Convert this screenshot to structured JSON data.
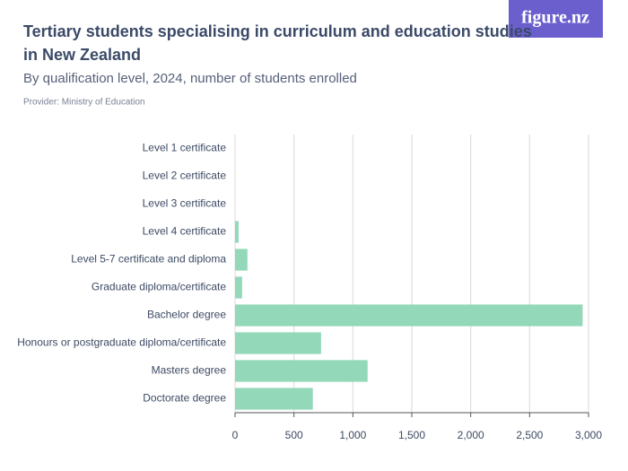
{
  "logo": "figure.nz",
  "chart_data": {
    "type": "hbar",
    "title": [
      "Tertiary students specialising in curriculum and education studies",
      "in New Zealand"
    ],
    "subtitle": "By qualification level, 2024, number of students enrolled",
    "provider": "Provider: Ministry of Education",
    "categories": [
      "Level 1 certificate",
      "Level 2 certificate",
      "Level 3 certificate",
      "Level 4 certificate",
      "Level 5-7 certificate and diploma",
      "Graduate diploma/certificate",
      "Bachelor degree",
      "Honours or postgraduate diploma/certificate",
      "Masters degree",
      "Doctorate degree"
    ],
    "values": [
      0,
      0,
      0,
      30,
      105,
      60,
      2950,
      730,
      1125,
      660
    ],
    "color": "#93d8b9",
    "xlim": [
      0,
      3000
    ],
    "xticks": [
      0,
      500,
      {
        "value": 1000,
        "label": "1,000"
      },
      {
        "value": 1500,
        "label": "1,500"
      },
      {
        "value": 2000,
        "label": "2,000"
      },
      {
        "value": 2500,
        "label": "2,500"
      },
      {
        "value": 3000,
        "label": "3,000"
      }
    ],
    "grid": true
  }
}
